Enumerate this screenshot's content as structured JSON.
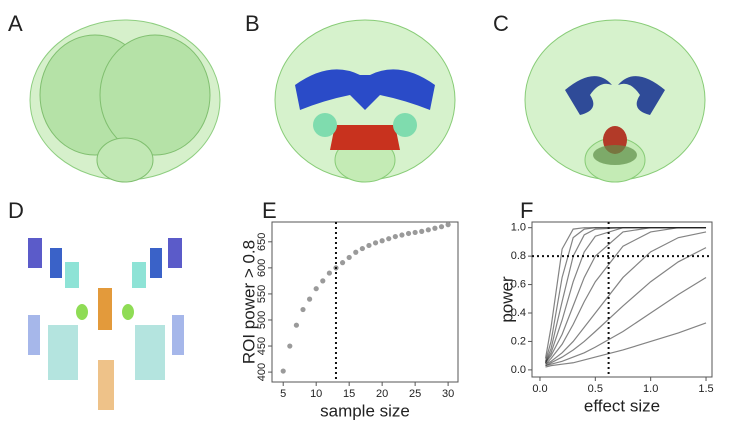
{
  "panels": {
    "labels": [
      "A",
      "B",
      "C",
      "D",
      "E",
      "F"
    ]
  },
  "chart_data": [
    {
      "type": "scatter",
      "x_label": "sample size",
      "y_label": "ROI power > 0.8",
      "color": "#9a9a9a",
      "x": [
        5,
        6,
        7,
        8,
        9,
        10,
        11,
        12,
        13,
        14,
        15,
        16,
        17,
        18,
        19,
        20,
        21,
        22,
        23,
        24,
        25,
        26,
        27,
        28,
        29,
        30
      ],
      "values": [
        402,
        450,
        490,
        520,
        540,
        560,
        575,
        590,
        600,
        610,
        620,
        630,
        637,
        643,
        648,
        652,
        656,
        660,
        663,
        666,
        668,
        670,
        673,
        676,
        679,
        683
      ],
      "xlim": [
        3.3,
        31.5
      ],
      "ylim": [
        381,
        688
      ],
      "xticks": [
        5,
        10,
        15,
        20,
        25,
        30
      ],
      "yticks": [
        400,
        450,
        500,
        550,
        600,
        650
      ],
      "vline": 13,
      "ytick_rotate": true
    },
    {
      "type": "line",
      "x_label": "effect size",
      "y_label": "power",
      "color": "rgba(30,30,30,0.55)",
      "x": [
        0.05,
        0.1,
        0.2,
        0.3,
        0.4,
        0.5,
        0.75,
        1.0,
        1.25,
        1.5
      ],
      "series": [
        {
          "values": [
            0.08,
            0.3,
            0.85,
            0.99,
            1,
            1,
            1,
            1,
            1,
            1
          ]
        },
        {
          "values": [
            0.06,
            0.2,
            0.65,
            0.93,
            0.99,
            1,
            1,
            1,
            1,
            1
          ]
        },
        {
          "values": [
            0.05,
            0.15,
            0.48,
            0.8,
            0.95,
            0.99,
            1,
            1,
            1,
            1
          ]
        },
        {
          "values": [
            0.05,
            0.12,
            0.35,
            0.62,
            0.83,
            0.94,
            1,
            1,
            1,
            1
          ]
        },
        {
          "values": [
            0.05,
            0.1,
            0.25,
            0.45,
            0.65,
            0.8,
            0.97,
            1,
            1,
            1
          ]
        },
        {
          "values": [
            0.04,
            0.08,
            0.18,
            0.32,
            0.48,
            0.62,
            0.87,
            0.97,
            1,
            1
          ]
        },
        {
          "values": [
            0.04,
            0.06,
            0.12,
            0.2,
            0.3,
            0.4,
            0.65,
            0.83,
            0.93,
            0.97
          ]
        },
        {
          "values": [
            0.03,
            0.05,
            0.09,
            0.14,
            0.2,
            0.27,
            0.45,
            0.62,
            0.76,
            0.86
          ]
        },
        {
          "values": [
            0.03,
            0.04,
            0.06,
            0.09,
            0.12,
            0.16,
            0.27,
            0.4,
            0.53,
            0.65
          ]
        },
        {
          "values": [
            0.02,
            0.03,
            0.04,
            0.05,
            0.07,
            0.09,
            0.14,
            0.2,
            0.26,
            0.33
          ]
        }
      ],
      "xlim": [
        -0.072,
        1.554
      ],
      "ylim": [
        -0.05,
        1.04
      ],
      "xticks": [
        {
          "value": 0,
          "label": "0.0"
        },
        0.5,
        {
          "value": 1,
          "label": "1.0"
        },
        1.5
      ],
      "yticks": [
        {
          "value": 0,
          "label": "0.0"
        },
        0.2,
        0.4,
        0.6,
        0.8,
        {
          "value": 1,
          "label": "1.0"
        }
      ],
      "vline": 0.62,
      "hline": 0.8,
      "ytick_rotate": false
    }
  ]
}
